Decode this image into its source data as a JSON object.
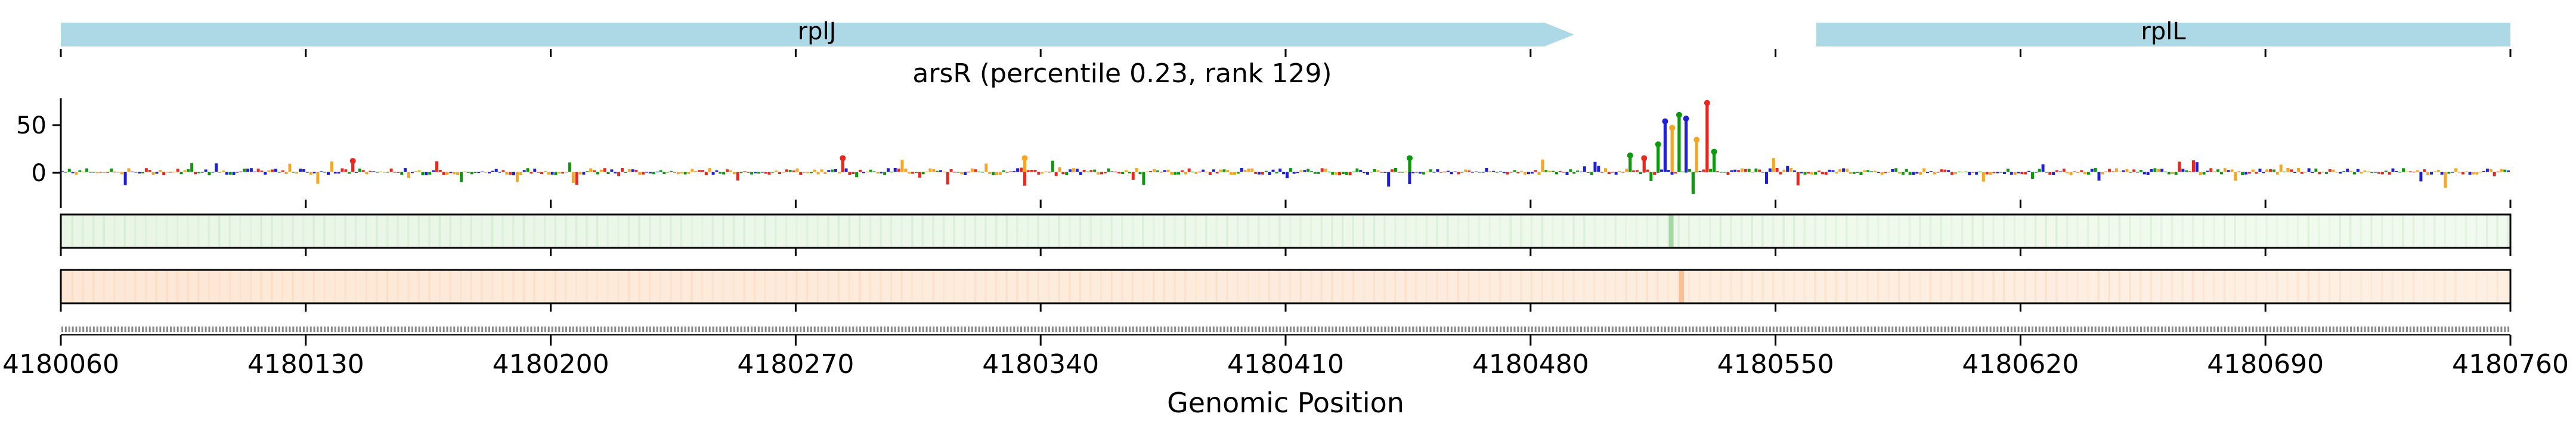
{
  "chart_data": {
    "type": "track-plot",
    "title": "arsR (percentile 0.23, rank 129)",
    "xlabel": "Genomic Position",
    "xlim": [
      4180060,
      4180760
    ],
    "x_ticks": [
      "4180060",
      "4180130",
      "4180200",
      "4180270",
      "4180340",
      "4180410",
      "4180480",
      "4180550",
      "4180620",
      "4180690",
      "4180760"
    ],
    "x_tick_values": [
      4180060,
      4180130,
      4180200,
      4180270,
      4180340,
      4180410,
      4180480,
      4180550,
      4180620,
      4180690,
      4180760
    ],
    "genes": [
      {
        "name": "rplJ",
        "start": 4180060,
        "end": 4180493,
        "strand": "+"
      },
      {
        "name": "rplL",
        "start": 4180565,
        "end": 4180760,
        "strand": "+"
      }
    ],
    "logo_track": {
      "y_ticks": [
        "50",
        "0"
      ],
      "y_tick_values": [
        50,
        0
      ],
      "ylim": [
        -30,
        80
      ],
      "base_colors": {
        "A": "#0a9a0a",
        "C": "#1f1fd6",
        "G": "#f5a623",
        "T": "#e8281e"
      },
      "peaks": [
        {
          "x": 4180516,
          "value": 30,
          "base": "A"
        },
        {
          "x": 4180518,
          "value": 55,
          "base": "C"
        },
        {
          "x": 4180520,
          "value": 48,
          "base": "G"
        },
        {
          "x": 4180522,
          "value": 62,
          "base": "A"
        },
        {
          "x": 4180524,
          "value": 58,
          "base": "C"
        },
        {
          "x": 4180526,
          "value": -24,
          "base": "A"
        },
        {
          "x": 4180527,
          "value": 35,
          "base": "G"
        },
        {
          "x": 4180530,
          "value": 75,
          "base": "T"
        },
        {
          "x": 4180532,
          "value": 22,
          "base": "A"
        },
        {
          "x": 4180508,
          "value": 18,
          "base": "A"
        },
        {
          "x": 4180512,
          "value": 15,
          "base": "T"
        },
        {
          "x": 4180335,
          "value": 15,
          "base": "G"
        },
        {
          "x": 4180283,
          "value": 15,
          "base": "T"
        },
        {
          "x": 4180445,
          "value": 15,
          "base": "A"
        },
        {
          "x": 4180143,
          "value": 12,
          "base": "T"
        }
      ]
    },
    "heat_track_1": {
      "color": "#4caf50",
      "peak_x": 4180520
    },
    "heat_track_2": {
      "color": "#f58a3c",
      "peak_x": 4180523
    }
  }
}
